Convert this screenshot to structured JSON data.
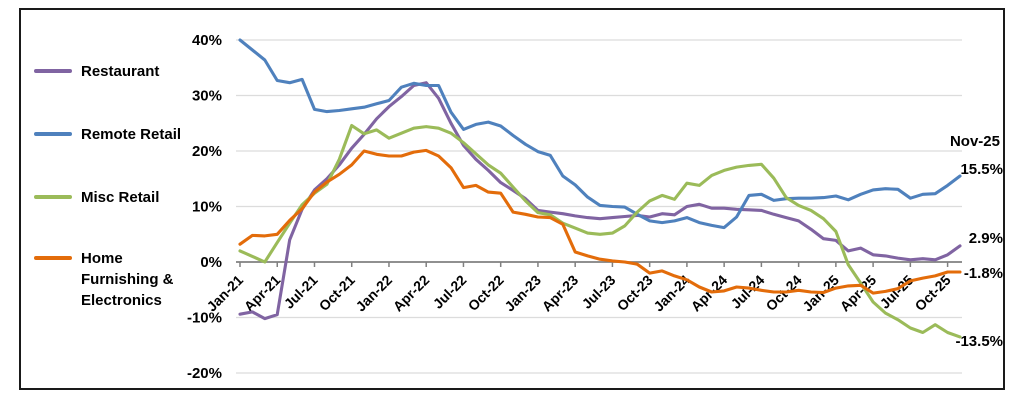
{
  "chart_data": {
    "type": "line",
    "title": "",
    "xlabel": "",
    "ylabel": "",
    "ylim": [
      -20,
      40
    ],
    "grid": true,
    "legend_position": "left",
    "y_tick_labels": [
      "40%",
      "30%",
      "20%",
      "10%",
      "0%",
      "-10%",
      "-20%"
    ],
    "y_tick_values": [
      40,
      30,
      20,
      10,
      0,
      -10,
      -20
    ],
    "x_tick_labels": [
      "Jan-21",
      "Apr-21",
      "Jul-21",
      "Oct-21",
      "Jan-22",
      "Apr-22",
      "Jul-22",
      "Oct-22",
      "Jan-23",
      "Apr-23",
      "Jul-23",
      "Oct-23",
      "Jan-24",
      "Apr-24",
      "Jul-24",
      "Oct-24",
      "Jan-25",
      "Apr-25",
      "Jul-25",
      "Oct-25"
    ],
    "x": [
      "Jan-21",
      "Feb-21",
      "Mar-21",
      "Apr-21",
      "May-21",
      "Jun-21",
      "Jul-21",
      "Aug-21",
      "Sep-21",
      "Oct-21",
      "Nov-21",
      "Dec-21",
      "Jan-22",
      "Feb-22",
      "Mar-22",
      "Apr-22",
      "May-22",
      "Jun-22",
      "Jul-22",
      "Aug-22",
      "Sep-22",
      "Oct-22",
      "Nov-22",
      "Dec-22",
      "Jan-23",
      "Feb-23",
      "Mar-23",
      "Apr-23",
      "May-23",
      "Jun-23",
      "Jul-23",
      "Aug-23",
      "Sep-23",
      "Oct-23",
      "Nov-23",
      "Dec-23",
      "Jan-24",
      "Feb-24",
      "Mar-24",
      "Apr-24",
      "May-24",
      "Jun-24",
      "Jul-24",
      "Aug-24",
      "Sep-24",
      "Oct-24",
      "Nov-24",
      "Dec-24",
      "Jan-25",
      "Feb-25",
      "Mar-25",
      "Apr-25",
      "May-25",
      "Jun-25",
      "Jul-25",
      "Aug-25",
      "Sep-25",
      "Oct-25",
      "Nov-25"
    ],
    "annotation_header": "Nov-25",
    "series": [
      {
        "name": "Restaurant",
        "color": "#8064A2",
        "end_label": "2.9%",
        "values": [
          -9.4,
          -9.0,
          -10.2,
          -9.5,
          4.0,
          9.5,
          13.0,
          15.0,
          17.5,
          20.5,
          23.0,
          25.8,
          28.0,
          29.8,
          31.8,
          32.3,
          29.5,
          25.0,
          21.0,
          18.5,
          16.5,
          14.3,
          12.9,
          11.4,
          9.3,
          9.0,
          8.7,
          8.3,
          8.0,
          7.8,
          8.0,
          8.2,
          8.4,
          8.1,
          8.7,
          8.5,
          10.0,
          10.4,
          9.7,
          9.7,
          9.5,
          9.4,
          9.3,
          8.6,
          8.0,
          7.4,
          5.9,
          4.2,
          3.9,
          2.0,
          2.5,
          1.3,
          1.1,
          0.7,
          0.4,
          0.6,
          0.4,
          1.3,
          2.9
        ]
      },
      {
        "name": "Remote Retail",
        "color": "#4F81BD",
        "end_label": "15.5%",
        "values": [
          40.0,
          38.2,
          36.4,
          32.7,
          32.3,
          32.9,
          27.5,
          27.1,
          27.3,
          27.6,
          27.9,
          28.5,
          29.1,
          31.5,
          32.2,
          31.8,
          31.8,
          27.0,
          23.9,
          24.8,
          25.2,
          24.5,
          22.8,
          21.2,
          19.9,
          19.2,
          15.5,
          13.9,
          11.7,
          10.2,
          10.0,
          9.9,
          8.6,
          7.4,
          7.1,
          7.4,
          8.0,
          7.1,
          6.6,
          6.2,
          8.1,
          12.0,
          12.2,
          11.1,
          11.4,
          11.5,
          11.5,
          11.6,
          11.9,
          11.2,
          12.2,
          13.0,
          13.2,
          13.1,
          11.5,
          12.2,
          12.3,
          13.8,
          15.5
        ]
      },
      {
        "name": "Misc Retail",
        "color": "#9BBB59",
        "end_label": "-13.5%",
        "values": [
          2.0,
          1.0,
          0.0,
          3.5,
          7.0,
          10.3,
          12.4,
          14.0,
          18.5,
          24.6,
          23.1,
          23.8,
          22.3,
          23.2,
          24.1,
          24.4,
          24.1,
          23.2,
          21.5,
          19.5,
          17.5,
          16.0,
          13.5,
          11.0,
          8.9,
          8.5,
          7.0,
          6.1,
          5.2,
          5.0,
          5.2,
          6.5,
          9.0,
          11.0,
          12.0,
          11.3,
          14.2,
          13.8,
          15.6,
          16.5,
          17.1,
          17.4,
          17.6,
          15.1,
          11.6,
          10.2,
          9.3,
          7.8,
          5.5,
          -0.5,
          -3.8,
          -7.2,
          -9.2,
          -10.4,
          -11.9,
          -12.7,
          -11.3,
          -12.7,
          -13.5
        ]
      },
      {
        "name": "Home Furnishing & Electronics",
        "color": "#E36C0A",
        "end_label": "-1.8%",
        "values": [
          3.2,
          4.8,
          4.7,
          5.0,
          7.5,
          9.6,
          12.6,
          14.4,
          15.8,
          17.5,
          20.0,
          19.4,
          19.1,
          19.1,
          19.8,
          20.1,
          19.1,
          17.0,
          13.4,
          13.8,
          12.6,
          12.4,
          9.0,
          8.6,
          8.1,
          8.0,
          6.8,
          1.8,
          1.1,
          0.5,
          0.2,
          0.0,
          -0.4,
          -2.0,
          -1.6,
          -2.5,
          -3.2,
          -4.5,
          -5.4,
          -5.2,
          -4.5,
          -4.7,
          -5.1,
          -5.4,
          -5.4,
          -5.1,
          -5.4,
          -5.5,
          -4.7,
          -4.3,
          -4.2,
          -5.6,
          -5.3,
          -4.8,
          -3.4,
          -2.9,
          -2.5,
          -1.8,
          -1.8
        ]
      }
    ],
    "colors": {
      "gridline": "#DCDCDC",
      "axis": "#808080",
      "text": "#000000",
      "frame": "#1a1a1a"
    }
  }
}
